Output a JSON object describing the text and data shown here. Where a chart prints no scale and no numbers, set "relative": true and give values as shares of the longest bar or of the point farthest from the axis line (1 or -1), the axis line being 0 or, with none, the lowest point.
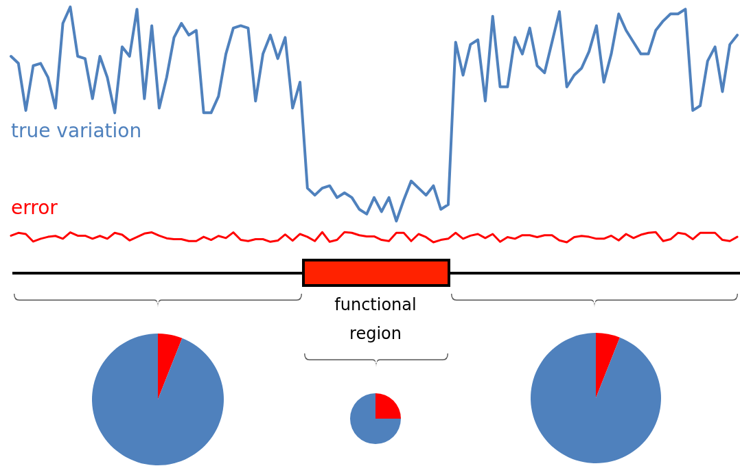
{
  "chart_data": [
    {
      "type": "line",
      "relative": true,
      "categories": [
        null,
        null,
        null,
        null,
        null,
        null,
        null,
        null,
        null,
        null,
        null,
        null,
        null,
        null,
        null,
        null,
        null,
        null,
        null,
        null,
        null,
        null,
        null,
        null,
        null,
        null,
        null,
        null,
        null,
        null,
        null,
        null,
        null,
        null,
        null,
        null,
        null,
        null,
        null,
        null,
        null,
        null,
        null,
        null,
        null,
        null,
        null,
        null,
        null,
        null,
        null,
        null,
        null,
        null,
        null,
        null,
        null,
        null,
        null,
        null,
        null,
        null,
        null,
        null,
        null,
        null,
        null,
        null,
        null,
        null,
        null,
        null,
        null,
        null,
        null,
        null,
        null,
        null,
        null,
        null,
        null,
        null,
        null,
        null,
        null,
        null,
        null,
        null,
        null,
        null,
        null,
        null,
        null,
        null,
        null,
        null,
        null,
        null,
        null
      ],
      "marker": "none",
      "line_style": "solid",
      "series": [
        {
          "name": "true variation",
          "color": "#4f81bd",
          "values": [
            0.79,
            0.76,
            0.56,
            0.75,
            0.76,
            0.7,
            0.57,
            0.93,
            1.0,
            0.79,
            0.78,
            0.61,
            0.79,
            0.7,
            0.55,
            0.83,
            0.79,
            0.99,
            0.61,
            0.92,
            0.57,
            0.7,
            0.87,
            0.93,
            0.88,
            0.9,
            0.55,
            0.55,
            0.62,
            0.8,
            0.91,
            0.92,
            0.91,
            0.6,
            0.8,
            0.88,
            0.78,
            0.87,
            0.57,
            0.68,
            0.23,
            0.2,
            0.23,
            0.24,
            0.19,
            0.21,
            0.19,
            0.14,
            0.12,
            0.19,
            0.13,
            0.19,
            0.09,
            0.18,
            0.26,
            0.23,
            0.2,
            0.24,
            0.14,
            0.16,
            0.85,
            0.71,
            0.84,
            0.86,
            0.6,
            0.96,
            0.66,
            0.66,
            0.87,
            0.8,
            0.91,
            0.75,
            0.72,
            0.85,
            0.98,
            0.66,
            0.71,
            0.74,
            0.81,
            0.92,
            0.68,
            0.8,
            0.97,
            0.9,
            0.85,
            0.8,
            0.8,
            0.9,
            0.94,
            0.97,
            0.97,
            0.99,
            0.56,
            0.58,
            0.77,
            0.83,
            0.64,
            0.84,
            0.88
          ]
        },
        {
          "name": "error",
          "color": "#ff0000",
          "values": [
            0.028,
            0.04,
            0.035,
            0.003,
            0.015,
            0.023,
            0.027,
            0.015,
            0.042,
            0.028,
            0.028,
            0.015,
            0.027,
            0.015,
            0.04,
            0.032,
            0.008,
            0.022,
            0.037,
            0.042,
            0.028,
            0.017,
            0.013,
            0.013,
            0.005,
            0.005,
            0.023,
            0.01,
            0.027,
            0.018,
            0.042,
            0.01,
            0.005,
            0.013,
            0.013,
            0.002,
            0.007,
            0.033,
            0.007,
            0.035,
            0.023,
            0.005,
            0.043,
            0.002,
            0.01,
            0.043,
            0.04,
            0.03,
            0.025,
            0.025,
            0.01,
            0.005,
            0.04,
            0.04,
            0.005,
            0.035,
            0.022,
            0,
            0.01,
            0.015,
            0.04,
            0.015,
            0.028,
            0.035,
            0.018,
            0.035,
            0.002,
            0.022,
            0.015,
            0.03,
            0.03,
            0.022,
            0.03,
            0.03,
            0.008,
            0,
            0.022,
            0.027,
            0.023,
            0.015,
            0.015,
            0.028,
            0.008,
            0.035,
            0.018,
            0.032,
            0.04,
            0.043,
            0.005,
            0.013,
            0.04,
            0.035,
            0.013,
            0.04,
            0.04,
            0.04,
            0.01,
            0.005,
            0.023
          ]
        }
      ]
    },
    {
      "type": "pie",
      "categories": [
        null,
        null
      ],
      "values": [
        6,
        94
      ],
      "colors": [
        "#ff0000",
        "#4f81bd"
      ]
    },
    {
      "type": "pie",
      "title": "functional region",
      "categories": [
        null,
        null
      ],
      "values": [
        25,
        75
      ],
      "colors": [
        "#ff0000",
        "#4f81bd"
      ]
    },
    {
      "type": "pie",
      "categories": [
        null,
        null
      ],
      "values": [
        6,
        94
      ],
      "colors": [
        "#ff0000",
        "#4f81bd"
      ]
    }
  ]
}
